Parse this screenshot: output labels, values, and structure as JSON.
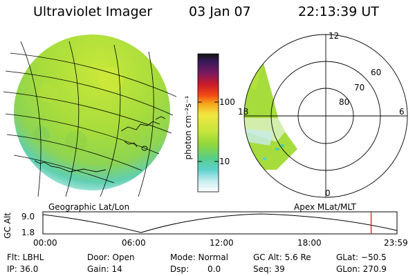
{
  "header": {
    "instrument": "Ultraviolet Imager",
    "date": "03 Jan 07",
    "time": "22:13:39 UT"
  },
  "colorbar": {
    "unit_label": "photon cm⁻²s⁻¹",
    "ticks": [
      "100",
      "10"
    ],
    "scale": "log"
  },
  "left_panel": {
    "caption": "Geographic Lat/Lon"
  },
  "right_panel": {
    "caption": "Apex MLat/MLT",
    "mlt_labels": [
      "12",
      "18",
      "6",
      "0"
    ],
    "mlat_labels": [
      "60",
      "70",
      "80"
    ]
  },
  "altitude_plot": {
    "axis_title": "GC Alt",
    "ytick_top": "9.0",
    "ytick_bottom": "1.8",
    "xticks": [
      "00:00",
      "06:00",
      "12:00",
      "18:00",
      "23:59"
    ],
    "current_marker_hours": 22.23,
    "marker_color": "#e00000"
  },
  "footer": {
    "flt": "Flt: LBHL",
    "ip": "IP: 36.0",
    "door": "Door: Open",
    "gain": "Gain: 14",
    "mode": "Mode: Normal",
    "dsp_label": "Dsp:",
    "dsp_value": "0.0",
    "gcalt": "GC Alt: 5.6 Re",
    "seq": "Seq: 39",
    "glat": "GLat: −50.5",
    "glon": "GLon: 270.9"
  }
}
